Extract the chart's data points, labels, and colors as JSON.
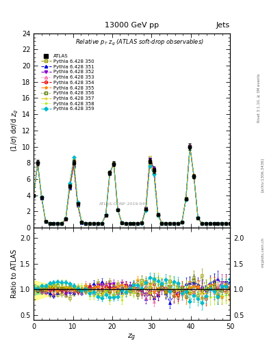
{
  "title_top": "13000 GeV pp",
  "title_right": "Jets",
  "plot_title": "Relative p$_T$ z$_g$ (ATLAS soft-drop observables)",
  "xlabel": "z$_g$",
  "ylabel_main": "(1/σ) dσ/d z₉",
  "ylabel_ratio": "Ratio to ATLAS",
  "watermark": "ATLAS-CONF-2019-049",
  "rivet_label": "Rivet 3.1.10, ≥ 3M events",
  "arxiv_label": "[arXiv:1306.3436]",
  "mcplots_label": "mcplots.cern.ch",
  "main_ylim": [
    0,
    24
  ],
  "main_yticks": [
    0,
    2,
    4,
    6,
    8,
    10,
    12,
    14,
    16,
    18,
    20,
    22,
    24
  ],
  "ratio_ylim": [
    0.4,
    2.2
  ],
  "ratio_yticks": [
    0.5,
    1.0,
    1.5,
    2.0
  ],
  "xlim": [
    0,
    50
  ],
  "xticks": [
    0,
    10,
    20,
    30,
    40,
    50
  ],
  "series": [
    {
      "label": "ATLAS",
      "color": "#000000",
      "marker": "s",
      "ms": 3.5,
      "ls": "none",
      "mfc": "#000000"
    },
    {
      "label": "Pythia 6.428 350",
      "color": "#999900",
      "marker": "s",
      "ms": 3,
      "ls": "--",
      "mfc": "none"
    },
    {
      "label": "Pythia 6.428 351",
      "color": "#0000dd",
      "marker": "^",
      "ms": 3,
      "ls": "--",
      "mfc": "#0000dd"
    },
    {
      "label": "Pythia 6.428 352",
      "color": "#8800cc",
      "marker": "v",
      "ms": 3,
      "ls": "-.",
      "mfc": "#8800cc"
    },
    {
      "label": "Pythia 6.428 353",
      "color": "#ff66aa",
      "marker": "^",
      "ms": 3,
      "ls": ":",
      "mfc": "none"
    },
    {
      "label": "Pythia 6.428 354",
      "color": "#ee0000",
      "marker": "o",
      "ms": 3,
      "ls": "--",
      "mfc": "none"
    },
    {
      "label": "Pythia 6.428 355",
      "color": "#ff8800",
      "marker": "*",
      "ms": 4,
      "ls": "--",
      "mfc": "#ff8800"
    },
    {
      "label": "Pythia 6.428 356",
      "color": "#557700",
      "marker": "s",
      "ms": 3,
      "ls": ":",
      "mfc": "none"
    },
    {
      "label": "Pythia 6.428 357",
      "color": "#ddcc00",
      "marker": "+",
      "ms": 4,
      "ls": "-.",
      "mfc": "#ddcc00"
    },
    {
      "label": "Pythia 6.428 358",
      "color": "#aaee00",
      "marker": ".",
      "ms": 3,
      "ls": ":",
      "mfc": "#aaee00"
    },
    {
      "label": "Pythia 6.428 359",
      "color": "#00bbcc",
      "marker": "D",
      "ms": 3,
      "ls": "--",
      "mfc": "#00bbcc"
    }
  ],
  "band_color_yellow": "#ffff88",
  "band_color_green": "#88ee88",
  "peak_positions": [
    1,
    10,
    20,
    30,
    40
  ],
  "peak_heights": [
    7.5,
    7.8,
    8.4,
    8.8,
    9.8
  ],
  "peak_sigma": 0.8,
  "baseline": 0.5,
  "n_points": 50
}
